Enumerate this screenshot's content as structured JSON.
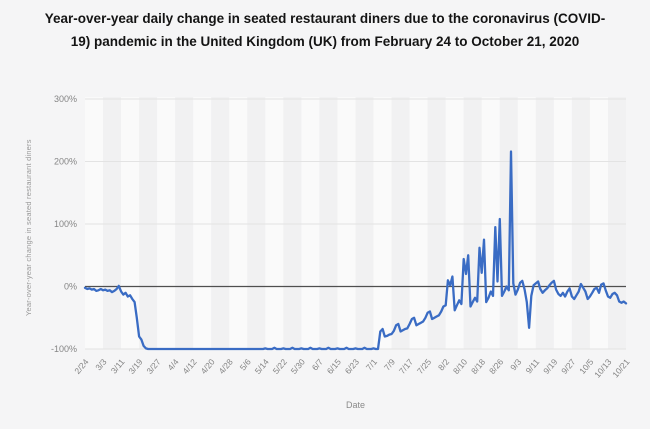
{
  "page": {
    "background_color": "#f5f5f6"
  },
  "header": {
    "title": "Year-over-year daily change in seated restaurant diners due to the coronavirus (COVID-19) pandemic in the United Kingdom (UK) from February 24 to October 21, 2020"
  },
  "chart_data": {
    "type": "line",
    "title": "Year-over-year daily change in seated restaurant diners due to the coronavirus (COVID-19) pandemic in the United Kingdom (UK) from February 24 to October 21, 2020",
    "xlabel": "Date",
    "ylabel": "Year-over-year change in seated restaurant diners",
    "legend": "none",
    "grid": "horizontal",
    "ylim": [
      -100,
      300
    ],
    "y_tick_labels": [
      "300%",
      "200%",
      "100%",
      "0%",
      "-100%"
    ],
    "y_ticks": [
      300,
      200,
      100,
      0,
      -100
    ],
    "x_tick_interval_days": 8,
    "x_tick_labels": [
      "2/24",
      "3/3",
      "3/11",
      "3/19",
      "3/27",
      "4/4",
      "4/12",
      "4/20",
      "4/28",
      "5/6",
      "5/14",
      "5/22",
      "5/30",
      "6/7",
      "6/15",
      "6/23",
      "7/1",
      "7/9",
      "7/17",
      "7/25",
      "8/2",
      "8/10",
      "8/18",
      "8/26",
      "9/3",
      "9/11",
      "9/19",
      "9/27",
      "10/5",
      "10/13",
      "10/21"
    ],
    "x_start_date": "2/24/2020",
    "x_end_date": "10/21/2020",
    "line_color": "#3a6cc4",
    "zero_line_color": "#4f4f4f",
    "gridline_color": "#e3e3e3",
    "band_colors": [
      "#fafafa",
      "#f1f1f2"
    ],
    "values": [
      -2,
      -4,
      -3,
      -5,
      -4,
      -7,
      -6,
      -4,
      -6,
      -5,
      -7,
      -6,
      -9,
      -7,
      -4,
      1,
      -8,
      -13,
      -10,
      -16,
      -14,
      -20,
      -25,
      -50,
      -80,
      -85,
      -95,
      -99,
      -100,
      -100,
      -100,
      -100,
      -100,
      -100,
      -100,
      -100,
      -100,
      -100,
      -100,
      -100,
      -100,
      -100,
      -100,
      -100,
      -100,
      -100,
      -100,
      -100,
      -100,
      -100,
      -100,
      -100,
      -100,
      -100,
      -100,
      -100,
      -100,
      -100,
      -100,
      -100,
      -100,
      -100,
      -100,
      -100,
      -100,
      -100,
      -100,
      -100,
      -100,
      -100,
      -100,
      -100,
      -100,
      -100,
      -100,
      -100,
      -100,
      -100,
      -100,
      -100,
      -99,
      -100,
      -100,
      -100,
      -98,
      -100,
      -100,
      -100,
      -99,
      -100,
      -100,
      -100,
      -98,
      -100,
      -100,
      -100,
      -99,
      -100,
      -100,
      -100,
      -98,
      -100,
      -100,
      -100,
      -99,
      -100,
      -100,
      -100,
      -98,
      -100,
      -100,
      -100,
      -99,
      -100,
      -100,
      -100,
      -98,
      -100,
      -100,
      -100,
      -99,
      -100,
      -100,
      -100,
      -98,
      -100,
      -100,
      -100,
      -99,
      -100,
      -100,
      -72,
      -68,
      -80,
      -79,
      -77,
      -76,
      -71,
      -62,
      -60,
      -72,
      -70,
      -68,
      -67,
      -60,
      -52,
      -50,
      -62,
      -60,
      -58,
      -56,
      -50,
      -42,
      -40,
      -52,
      -50,
      -48,
      -46,
      -40,
      -32,
      -30,
      10,
      2,
      16,
      -38,
      -30,
      -22,
      -28,
      44,
      20,
      50,
      -32,
      -25,
      -18,
      -24,
      62,
      22,
      75,
      -25,
      -18,
      -8,
      -15,
      95,
      8,
      108,
      -15,
      -8,
      0,
      -6,
      216,
      5,
      -13,
      -5,
      6,
      9,
      -5,
      -25,
      -66,
      -15,
      2,
      5,
      8,
      -4,
      -10,
      -6,
      -3,
      2,
      6,
      9,
      -5,
      -12,
      -15,
      -10,
      -16,
      -8,
      -3,
      -16,
      -20,
      -14,
      -8,
      4,
      -2,
      -8,
      -20,
      -16,
      -10,
      -4,
      -2,
      -10,
      3,
      5,
      -6,
      -16,
      -18,
      -12,
      -10,
      -14,
      -24,
      -26,
      -24,
      -27
    ]
  }
}
